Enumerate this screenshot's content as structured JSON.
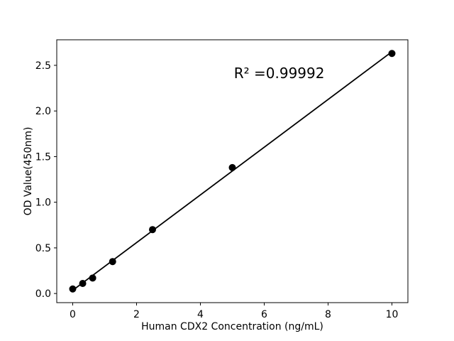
{
  "chart_data": {
    "type": "scatter",
    "title": "",
    "xlabel": "Human CDX2 Concentration (ng/mL)",
    "ylabel": "OD Value(450nm)",
    "points": [
      {
        "x": 0,
        "y": 0.05
      },
      {
        "x": 0.3125,
        "y": 0.11
      },
      {
        "x": 0.625,
        "y": 0.17
      },
      {
        "x": 1.25,
        "y": 0.35
      },
      {
        "x": 2.5,
        "y": 0.7
      },
      {
        "x": 5,
        "y": 1.38
      },
      {
        "x": 10,
        "y": 2.63
      }
    ],
    "trendline": {
      "slope": 0.2614,
      "intercept": 0.035,
      "x_start": 0,
      "x_end": 10
    },
    "annotation": {
      "text": "R² =0.99992",
      "x": 5.05,
      "y": 2.36
    },
    "xlim": [
      -0.5,
      10.5
    ],
    "ylim": [
      -0.1,
      2.78
    ],
    "xticks": {
      "values": [
        0,
        2,
        4,
        6,
        8,
        10
      ],
      "labels": [
        "0",
        "2",
        "4",
        "6",
        "8",
        "10"
      ]
    },
    "yticks": {
      "values": [
        0.0,
        0.5,
        1.0,
        1.5,
        2.0,
        2.5
      ],
      "labels": [
        "0.0",
        "0.5",
        "1.0",
        "1.5",
        "2.0",
        "2.5"
      ]
    },
    "grid": false,
    "legend_position": "none",
    "colors": {
      "marker": "#000000",
      "line": "#000000",
      "axes": "#000000",
      "text": "#000000",
      "background": "#ffffff"
    }
  }
}
